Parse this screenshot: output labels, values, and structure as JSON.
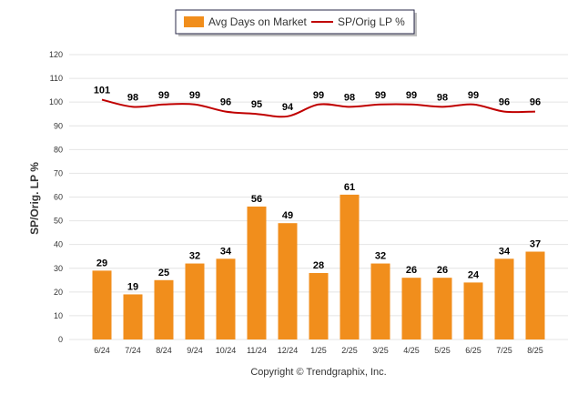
{
  "chart_data": {
    "type": "bar+line",
    "categories": [
      "6/24",
      "7/24",
      "8/24",
      "9/24",
      "10/24",
      "11/24",
      "12/24",
      "1/25",
      "2/25",
      "3/25",
      "4/25",
      "5/25",
      "6/25",
      "7/25",
      "8/25"
    ],
    "series": [
      {
        "name": "Avg Days on Market",
        "type": "bar",
        "color": "#f18e1c",
        "values": [
          29,
          19,
          25,
          32,
          34,
          56,
          49,
          28,
          61,
          32,
          26,
          26,
          24,
          34,
          37
        ]
      },
      {
        "name": "SP/Orig LP %",
        "type": "line",
        "color": "#c00000",
        "values": [
          101,
          98,
          99,
          99,
          96,
          95,
          94,
          99,
          98,
          99,
          99,
          98,
          99,
          96,
          96
        ]
      }
    ],
    "ylabel": "SP/Orig. LP %",
    "ylim": [
      0,
      120
    ],
    "yticks": [
      0,
      10,
      20,
      30,
      40,
      50,
      60,
      70,
      80,
      90,
      100,
      110,
      120
    ],
    "grid": true,
    "legend_position": "top-center"
  },
  "footer": "Copyright © Trendgraphix, Inc."
}
